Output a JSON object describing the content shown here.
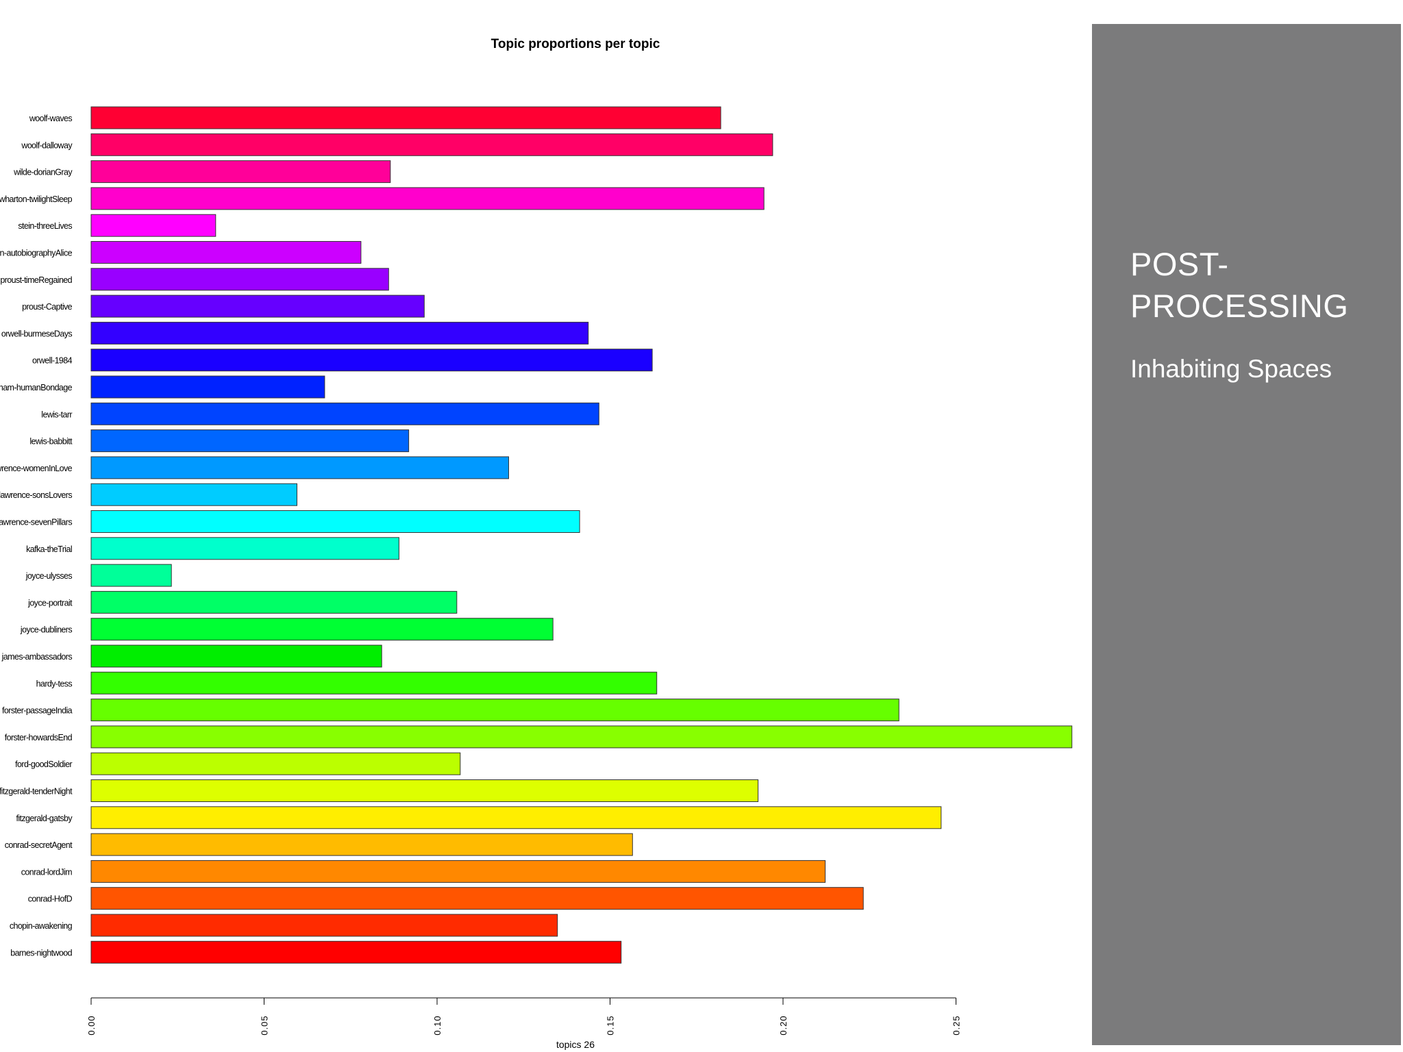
{
  "side_panel": {
    "title": "POST-PROCESSING",
    "subtitle": "Inhabiting Spaces",
    "background_color": "#7b7b7c",
    "text_color": "#ffffff"
  },
  "chart_data": {
    "type": "bar",
    "orientation": "horizontal",
    "title": "Topic proportions per topic",
    "xlabel": "topics 26",
    "ylabel": "",
    "xlim": [
      0,
      0.285
    ],
    "xticks": [
      0,
      0.05,
      0.1,
      0.15,
      0.2,
      0.25
    ],
    "xtick_labels": [
      "0.00",
      "0.05",
      "0.10",
      "0.15",
      "0.20",
      "0.25"
    ],
    "grid": false,
    "categories": [
      "woolf-waves",
      "woolf-dalloway",
      "wilde-dorianGray",
      "wharton-twilightSleep",
      "stein-threeLives",
      "stein-autobiographyAlice",
      "proust-timeRegained",
      "proust-Captive",
      "orwell-burmeseDays",
      "orwell-1984",
      "maugham-humanBondage",
      "lewis-tarr",
      "lewis-babbitt",
      "lawrence-womenInLove",
      "lawrence-sonsLovers",
      "lawrence-sevenPillars",
      "kafka-theTrial",
      "joyce-ulysses",
      "joyce-portrait",
      "joyce-dubliners",
      "james-ambassadors",
      "hardy-tess",
      "forster-passageIndia",
      "forster-howardsEnd",
      "ford-goodSoldier",
      "fitzgerald-tenderNight",
      "fitzgerald-gatsby",
      "conrad-secretAgent",
      "conrad-lordJim",
      "conrad-HofD",
      "chopin-awakening",
      "barnes-nightwood"
    ],
    "values": [
      0.182,
      0.197,
      0.0865,
      0.1945,
      0.036,
      0.078,
      0.086,
      0.0963,
      0.1437,
      0.1622,
      0.0675,
      0.1468,
      0.0918,
      0.1207,
      0.0595,
      0.1412,
      0.089,
      0.0232,
      0.1057,
      0.1335,
      0.084,
      0.1635,
      0.2335,
      0.2835,
      0.1067,
      0.1928,
      0.2457,
      0.1565,
      0.2122,
      0.2232,
      0.1348,
      0.1532
    ],
    "colors": [
      "#ff0033",
      "#ff0066",
      "#ff0099",
      "#ff00cc",
      "#ff00ff",
      "#cc00ff",
      "#9900ff",
      "#6600ff",
      "#3300ff",
      "#1a00ff",
      "#0022ff",
      "#0044ff",
      "#0066ff",
      "#0099ff",
      "#00ccff",
      "#00ffff",
      "#00ffcc",
      "#00ff99",
      "#00ff66",
      "#00ff33",
      "#00ee00",
      "#33ff00",
      "#66ff00",
      "#88ff00",
      "#bbff00",
      "#ddff00",
      "#ffee00",
      "#ffbb00",
      "#ff8800",
      "#ff5500",
      "#ff2b00",
      "#ff0000"
    ]
  }
}
